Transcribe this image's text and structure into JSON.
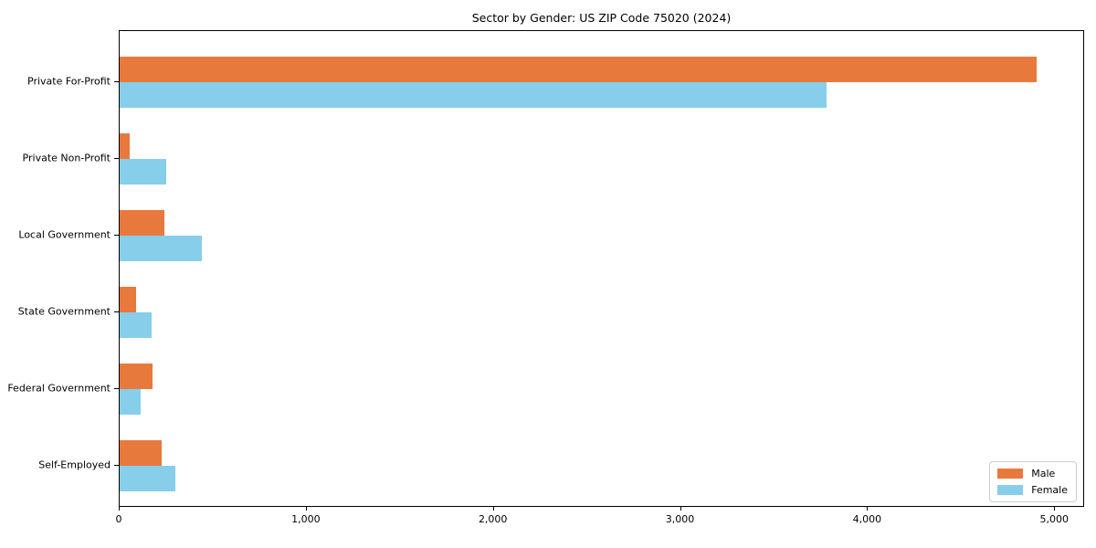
{
  "chart_data": {
    "type": "bar",
    "orientation": "horizontal",
    "title": "Sector by Gender: US ZIP Code 75020 (2024)",
    "categories": [
      "Private For-Profit",
      "Private Non-Profit",
      "Local Government",
      "State Government",
      "Federal Government",
      "Self-Employed"
    ],
    "series": [
      {
        "name": "Male",
        "color": "#e8793d",
        "values": [
          4900,
          55,
          240,
          90,
          175,
          225
        ]
      },
      {
        "name": "Female",
        "color": "#87ceeb",
        "values": [
          3780,
          250,
          440,
          170,
          110,
          300
        ]
      }
    ],
    "xlabel": "",
    "ylabel": "",
    "xlim": [
      0,
      5160
    ],
    "x_tick_values": [
      0,
      1000,
      2000,
      3000,
      4000,
      5000
    ],
    "x_tick_labels": [
      "0",
      "1,000",
      "2,000",
      "3,000",
      "4,000",
      "5,000"
    ],
    "grid": false,
    "legend_position": "lower right",
    "colors": {
      "male": "#e8793d",
      "female": "#87ceeb",
      "spine": "#000000",
      "background": "#ffffff"
    }
  }
}
